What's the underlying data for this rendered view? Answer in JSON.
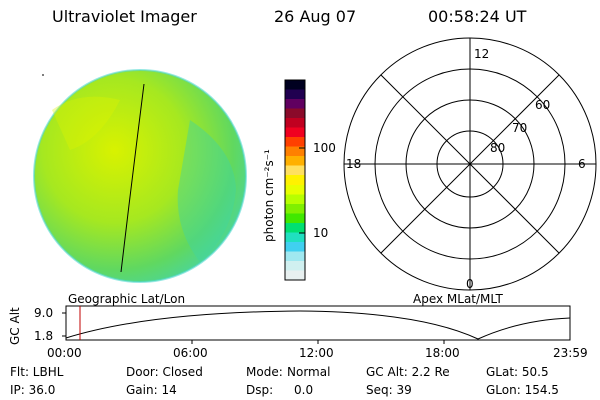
{
  "header": {
    "title": "Ultraviolet Imager",
    "date": "26 Aug 07",
    "time": "00:58:24 UT"
  },
  "colorbar": {
    "unit_label": "photon cm⁻²s⁻¹",
    "tick_labels": [
      "100",
      "10"
    ],
    "colors": [
      "#000020",
      "#200050",
      "#600060",
      "#8a0a2a",
      "#c00020",
      "#f00020",
      "#ff4000",
      "#ff8000",
      "#ffb000",
      "#ffe060",
      "#fff200",
      "#e8ff00",
      "#b8ff00",
      "#80f000",
      "#40e800",
      "#00e070",
      "#20e0c0",
      "#40d0f0",
      "#a0e8f0",
      "#d0f0f0",
      "#e8f0f0"
    ]
  },
  "polar": {
    "mlt_labels": [
      "12",
      "18",
      "6",
      "0"
    ],
    "mlat_labels": [
      "60",
      "70",
      "80"
    ]
  },
  "panel_labels": {
    "left": "Geographic Lat/Lon",
    "right": "Apex MLat/MLT"
  },
  "alt_plot": {
    "ylabel": "GC Alt",
    "y_ticks": [
      "9.0",
      "1.8"
    ],
    "x_ticks": [
      "00:00",
      "06:00",
      "12:00",
      "18:00",
      "23:59"
    ],
    "cursor_color": "#c00000"
  },
  "info": {
    "filter": "Flt: LBHL",
    "ip": "IP: 36.0",
    "door": "Door: Closed",
    "gain": "Gain: 14",
    "mode_label": "Mode:",
    "mode_value": "Normal",
    "dsp_label": "Dsp:",
    "dsp_value": "0.0",
    "gc_alt": "GC Alt: 2.2 Re",
    "seq": "Seq: 39",
    "glat": "GLat:  50.5",
    "glon": "GLon: 154.5"
  }
}
